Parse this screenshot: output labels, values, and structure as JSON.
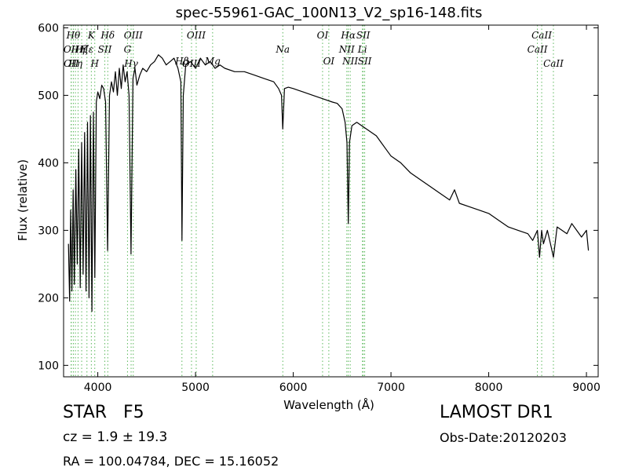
{
  "chart_data": {
    "type": "line",
    "title": "spec-55961-GAC_100N13_V2_sp16-148.fits",
    "xlabel": "Wavelength (Å)",
    "ylabel": "Flux (relative)",
    "xlim": [
      3650,
      9120
    ],
    "ylim": [
      83,
      604
    ],
    "x_ticks": [
      {
        "value": 4000,
        "label": "4000"
      },
      {
        "value": 5000,
        "label": "5000"
      },
      {
        "value": 6000,
        "label": "6000"
      },
      {
        "value": 7000,
        "label": "7000"
      },
      {
        "value": 8000,
        "label": "8000"
      },
      {
        "value": 9000,
        "label": "9000"
      }
    ],
    "y_ticks": [
      {
        "value": 100,
        "label": "100"
      },
      {
        "value": 200,
        "label": "200"
      },
      {
        "value": 300,
        "label": "300"
      },
      {
        "value": 400,
        "label": "400"
      },
      {
        "value": 500,
        "label": "500"
      },
      {
        "value": 600,
        "label": "600"
      }
    ],
    "grid": false,
    "series": [
      {
        "color": "#000000",
        "x": [
          3700,
          3712,
          3722,
          3735,
          3748,
          3760,
          3775,
          3790,
          3805,
          3820,
          3835,
          3850,
          3865,
          3880,
          3895,
          3910,
          3925,
          3940,
          3955,
          3970,
          3985,
          4000,
          4020,
          4040,
          4060,
          4080,
          4101,
          4120,
          4140,
          4160,
          4180,
          4200,
          4220,
          4240,
          4260,
          4280,
          4300,
          4320,
          4340,
          4360,
          4380,
          4400,
          4430,
          4460,
          4500,
          4540,
          4580,
          4620,
          4660,
          4700,
          4740,
          4780,
          4820,
          4850,
          4861,
          4875,
          4900,
          4950,
          5000,
          5050,
          5100,
          5150,
          5200,
          5250,
          5300,
          5400,
          5500,
          5600,
          5700,
          5800,
          5850,
          5880,
          5893,
          5910,
          5950,
          6000,
          6100,
          6200,
          6300,
          6400,
          6450,
          6500,
          6530,
          6550,
          6563,
          6575,
          6600,
          6650,
          6700,
          6750,
          6800,
          6850,
          6900,
          6950,
          7000,
          7100,
          7200,
          7300,
          7400,
          7500,
          7600,
          7650,
          7700,
          7800,
          7900,
          8000,
          8100,
          8200,
          8300,
          8400,
          8450,
          8498,
          8520,
          8542,
          8560,
          8600,
          8640,
          8662,
          8700,
          8750,
          8800,
          8850,
          8900,
          8950,
          9000,
          9020
        ],
        "y": [
          280,
          195,
          330,
          210,
          360,
          220,
          390,
          250,
          420,
          215,
          430,
          235,
          445,
          210,
          460,
          200,
          470,
          180,
          475,
          230,
          490,
          505,
          495,
          515,
          510,
          490,
          270,
          500,
          520,
          505,
          535,
          500,
          540,
          510,
          545,
          520,
          535,
          500,
          265,
          525,
          540,
          515,
          530,
          540,
          535,
          545,
          550,
          560,
          555,
          545,
          550,
          555,
          540,
          520,
          285,
          500,
          545,
          550,
          540,
          555,
          545,
          550,
          540,
          545,
          540,
          535,
          535,
          530,
          525,
          520,
          510,
          500,
          450,
          510,
          512,
          510,
          505,
          500,
          495,
          490,
          488,
          480,
          460,
          430,
          310,
          430,
          455,
          460,
          455,
          450,
          445,
          440,
          430,
          420,
          410,
          400,
          385,
          375,
          365,
          355,
          345,
          360,
          340,
          335,
          330,
          325,
          315,
          305,
          300,
          295,
          285,
          300,
          260,
          300,
          280,
          300,
          275,
          260,
          305,
          300,
          295,
          310,
          300,
          290,
          300,
          270
        ]
      }
    ],
    "line_annotations": [
      {
        "x": 3727,
        "label": "OII",
        "row": 1
      },
      {
        "x": 3729,
        "label": "OII",
        "row": 2
      },
      {
        "x": 3750,
        "label": "Hθ",
        "row": 0
      },
      {
        "x": 3771,
        "label": "Hη",
        "row": 2
      },
      {
        "x": 3798,
        "label": "Hη",
        "row": 1
      },
      {
        "x": 3835,
        "label": "Hζ",
        "row": 1
      },
      {
        "x": 3889,
        "label": "Hε",
        "row": 1
      },
      {
        "x": 3934,
        "label": "K",
        "row": 0
      },
      {
        "x": 3969,
        "label": "H",
        "row": 2
      },
      {
        "x": 4072,
        "label": "SII",
        "row": 1
      },
      {
        "x": 4102,
        "label": "Hδ",
        "row": 0
      },
      {
        "x": 4304,
        "label": "G",
        "row": 3
      },
      {
        "x": 4341,
        "label": "Hγ",
        "row": 2
      },
      {
        "x": 4363,
        "label": "OIII",
        "row": 0
      },
      {
        "x": 4861,
        "label": "Hβ",
        "row": 4
      },
      {
        "x": 4959,
        "label": "OIII",
        "row": 2
      },
      {
        "x": 5007,
        "label": "OIII",
        "row": 0
      },
      {
        "x": 5175,
        "label": "Mg",
        "row": 4
      },
      {
        "x": 5893,
        "label": "Na",
        "row": 3
      },
      {
        "x": 6300,
        "label": "OI",
        "row": 0
      },
      {
        "x": 6364,
        "label": "OI",
        "row": 4
      },
      {
        "x": 6548,
        "label": "NII",
        "row": 1
      },
      {
        "x": 6563,
        "label": "Hα",
        "row": 0
      },
      {
        "x": 6583,
        "label": "NII",
        "row": 4
      },
      {
        "x": 6708,
        "label": "Li",
        "row": 1
      },
      {
        "x": 6716,
        "label": "SII",
        "row": 0
      },
      {
        "x": 6731,
        "label": "SII",
        "row": 4
      },
      {
        "x": 8498,
        "label": "CaII",
        "row": 1
      },
      {
        "x": 8542,
        "label": "CaII",
        "row": 0
      },
      {
        "x": 8662,
        "label": "CaII",
        "row": 2
      }
    ]
  },
  "info": {
    "class_label": "STAR",
    "subclass": "F5",
    "survey": "LAMOST DR1",
    "cz": "cz = 1.9 ± 19.3",
    "obs_date": "Obs-Date:20120203",
    "coords": "RA = 100.04784, DEC = 15.16052"
  },
  "colors": {
    "line_marker": "#5cb85c",
    "spectrum": "#000000"
  }
}
